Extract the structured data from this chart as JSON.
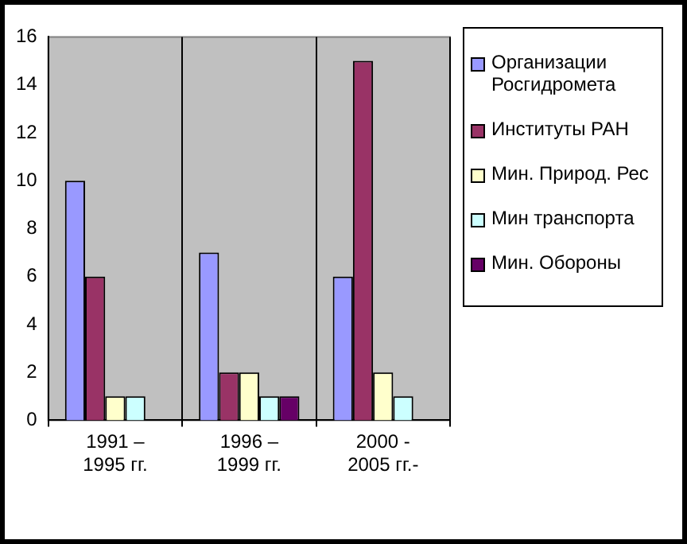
{
  "chart_data": {
    "type": "bar",
    "categories": [
      "1991 –\n1995 гг.",
      "1996 –\n1999 гг.",
      "2000 -\n2005 гг.-"
    ],
    "series": [
      {
        "name": "Организации Росгидромета",
        "color": "#9999ff",
        "values": [
          10,
          7,
          6
        ]
      },
      {
        "name": "Институты РАН",
        "color": "#993366",
        "values": [
          6,
          2,
          15
        ]
      },
      {
        "name": "Мин. Природ. Рес",
        "color": "#ffffcc",
        "values": [
          1,
          2,
          2
        ]
      },
      {
        "name": "Мин транспорта",
        "color": "#ccffff",
        "values": [
          1,
          1,
          1
        ]
      },
      {
        "name": "Мин. Обороны",
        "color": "#660066",
        "values": [
          0,
          1,
          0
        ]
      }
    ],
    "ylim": [
      0,
      16
    ],
    "yticks": [
      0,
      2,
      4,
      6,
      8,
      10,
      12,
      14,
      16
    ],
    "grid": "x",
    "legend": "right"
  }
}
